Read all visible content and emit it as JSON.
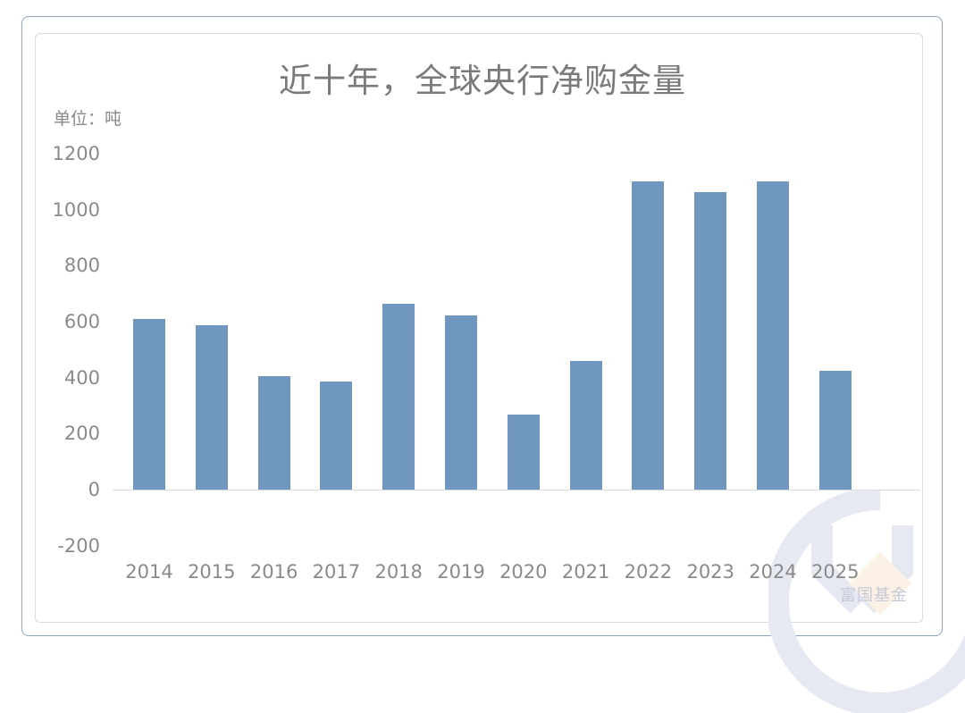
{
  "title": "近十年，全球央行净购金量",
  "unit_label": "单位：吨",
  "watermark_text": "富国基金",
  "colors": {
    "bar": "#7097bf",
    "axis_text": "#8a8a8a",
    "title": "#7a7a7a",
    "frame": "#8ea3bb"
  },
  "y_axis": {
    "ticks": [
      "1200",
      "1000",
      "800",
      "600",
      "400",
      "200",
      "0",
      "-200"
    ]
  },
  "x_axis": {
    "ticks": [
      "2014",
      "2015",
      "2016",
      "2017",
      "2018",
      "2019",
      "2020",
      "2021",
      "2022",
      "2023",
      "2024",
      "2025"
    ]
  },
  "chart_data": {
    "type": "bar",
    "title": "近十年，全球央行净购金量",
    "xlabel": "",
    "ylabel": "单位：吨",
    "categories": [
      "2014",
      "2015",
      "2016",
      "2017",
      "2018",
      "2019",
      "2020",
      "2021",
      "2022",
      "2023",
      "2024",
      "2025"
    ],
    "values": [
      611,
      587,
      405,
      387,
      663,
      623,
      268,
      460,
      1100,
      1064,
      1100,
      424
    ],
    "ylim": [
      -200,
      1200
    ],
    "yticks": [
      -200,
      0,
      200,
      400,
      600,
      800,
      1000,
      1200
    ],
    "grid": false,
    "legend": null
  }
}
